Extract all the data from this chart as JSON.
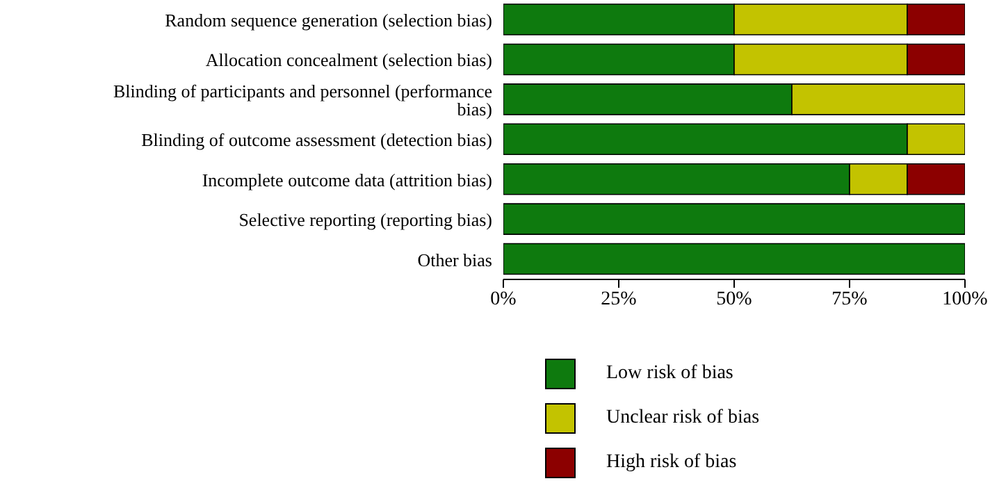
{
  "chart_data": {
    "type": "bar",
    "orientation": "horizontal",
    "stacked": true,
    "legend": "bottom",
    "categories": [
      "Random sequence generation (selection bias)",
      "Allocation concealment (selection bias)",
      "Blinding of participants and personnel (performance bias)",
      "Blinding of outcome assessment (detection bias)",
      "Incomplete outcome data (attrition bias)",
      "Selective reporting (reporting bias)",
      "Other bias"
    ],
    "series": [
      {
        "name": "Low risk of bias",
        "color": "#0e7a0e",
        "values": [
          50,
          50,
          62.5,
          87.5,
          75,
          100,
          100
        ]
      },
      {
        "name": "Unclear risk of bias",
        "color": "#c3c300",
        "values": [
          37.5,
          37.5,
          37.5,
          12.5,
          12.5,
          0,
          0
        ]
      },
      {
        "name": "High risk of bias",
        "color": "#8c0000",
        "values": [
          12.5,
          12.5,
          0,
          0,
          12.5,
          0,
          0
        ]
      }
    ],
    "xlim": [
      0,
      100
    ],
    "xticks": [
      {
        "value": 0,
        "label": "0%"
      },
      {
        "value": 25,
        "label": "25%"
      },
      {
        "value": 50,
        "label": "50%"
      },
      {
        "value": 75,
        "label": "75%"
      },
      {
        "value": 100,
        "label": "100%"
      }
    ]
  }
}
